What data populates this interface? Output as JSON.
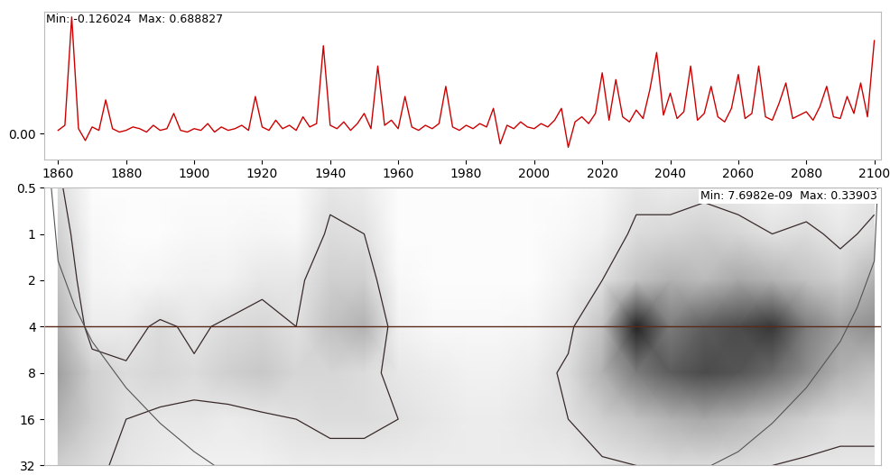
{
  "chart_data": [
    {
      "type": "line",
      "annotation": "Min: -0.126024  Max: 0.688827",
      "color": "#cc0000",
      "x": [
        1860,
        1862,
        1864,
        1866,
        1868,
        1870,
        1872,
        1874,
        1876,
        1878,
        1880,
        1882,
        1884,
        1886,
        1888,
        1890,
        1892,
        1894,
        1896,
        1898,
        1900,
        1902,
        1904,
        1906,
        1908,
        1910,
        1912,
        1914,
        1916,
        1918,
        1920,
        1922,
        1924,
        1926,
        1928,
        1930,
        1932,
        1934,
        1936,
        1938,
        1940,
        1942,
        1944,
        1946,
        1948,
        1950,
        1952,
        1954,
        1956,
        1958,
        1960,
        1962,
        1964,
        1966,
        1968,
        1970,
        1972,
        1974,
        1976,
        1978,
        1980,
        1982,
        1984,
        1986,
        1988,
        1990,
        1992,
        1994,
        1996,
        1998,
        2000,
        2002,
        2004,
        2006,
        2008,
        2010,
        2012,
        2014,
        2016,
        2018,
        2020,
        2022,
        2024,
        2026,
        2028,
        2030,
        2032,
        2034,
        2036,
        2038,
        2040,
        2042,
        2044,
        2046,
        2048,
        2050,
        2052,
        2054,
        2056,
        2058,
        2060,
        2062,
        2064,
        2066,
        2068,
        2070,
        2072,
        2074,
        2076,
        2078,
        2080,
        2082,
        2084,
        2086,
        2088,
        2090,
        2092,
        2094,
        2096,
        2098,
        2100
      ],
      "values": [
        0.02,
        0.05,
        0.69,
        0.03,
        -0.04,
        0.04,
        0.02,
        0.2,
        0.03,
        0.01,
        0.02,
        0.04,
        0.03,
        0.01,
        0.05,
        0.02,
        0.03,
        0.12,
        0.02,
        0.01,
        0.03,
        0.02,
        0.06,
        0.01,
        0.04,
        0.02,
        0.03,
        0.05,
        0.02,
        0.22,
        0.04,
        0.02,
        0.08,
        0.03,
        0.05,
        0.02,
        0.1,
        0.04,
        0.06,
        0.52,
        0.05,
        0.03,
        0.07,
        0.02,
        0.06,
        0.12,
        0.03,
        0.4,
        0.05,
        0.08,
        0.03,
        0.22,
        0.04,
        0.02,
        0.05,
        0.03,
        0.06,
        0.28,
        0.04,
        0.02,
        0.05,
        0.03,
        0.06,
        0.04,
        0.15,
        -0.06,
        0.05,
        0.03,
        0.07,
        0.04,
        0.03,
        0.06,
        0.04,
        0.08,
        0.15,
        -0.08,
        0.07,
        0.1,
        0.06,
        0.12,
        0.36,
        0.08,
        0.32,
        0.1,
        0.07,
        0.14,
        0.09,
        0.26,
        0.48,
        0.11,
        0.24,
        0.09,
        0.13,
        0.4,
        0.08,
        0.12,
        0.28,
        0.1,
        0.07,
        0.15,
        0.35,
        0.09,
        0.12,
        0.4,
        0.1,
        0.08,
        0.18,
        0.3,
        0.09,
        0.11,
        0.13,
        0.08,
        0.16,
        0.28,
        0.1,
        0.09,
        0.22,
        0.12,
        0.3,
        0.1,
        0.55
      ],
      "xlim": [
        1856,
        2102
      ],
      "ylim": [
        -0.15,
        0.72
      ],
      "xticks": [
        1860,
        1880,
        1900,
        1920,
        1940,
        1960,
        1980,
        2000,
        2020,
        2040,
        2060,
        2080,
        2100
      ],
      "yticks": [
        {
          "value": 0,
          "label": "0.00"
        }
      ]
    },
    {
      "type": "heatmap",
      "annotation": "Min: 7.6982e-09  Max: 0.33903",
      "log": "y",
      "tick_labels": "y",
      "x": [
        1860,
        1870,
        1880,
        1890,
        1900,
        1910,
        1920,
        1930,
        1940,
        1950,
        1960,
        1970,
        1980,
        1990,
        2000,
        2010,
        2020,
        2030,
        2040,
        2050,
        2060,
        2070,
        2080,
        2090,
        2100
      ],
      "y": [
        0.5,
        1,
        2,
        4,
        8,
        16,
        32
      ],
      "cells": [
        [
          0.08,
          0.01,
          0.01,
          0.01,
          0.01,
          0.01,
          0.01,
          0.01,
          0.06,
          0.05,
          0.01,
          0.01,
          0.01,
          0.01,
          0.01,
          0.01,
          0.02,
          0.06,
          0.05,
          0.06,
          0.05,
          0.03,
          0.05,
          0.03,
          0.06
        ],
        [
          0.1,
          0.02,
          0.01,
          0.01,
          0.02,
          0.02,
          0.03,
          0.02,
          0.08,
          0.07,
          0.01,
          0.01,
          0.01,
          0.01,
          0.01,
          0.02,
          0.04,
          0.08,
          0.09,
          0.1,
          0.09,
          0.07,
          0.08,
          0.06,
          0.08
        ],
        [
          0.12,
          0.03,
          0.02,
          0.03,
          0.04,
          0.04,
          0.06,
          0.06,
          0.1,
          0.1,
          0.02,
          0.01,
          0.01,
          0.01,
          0.01,
          0.04,
          0.07,
          0.12,
          0.14,
          0.13,
          0.15,
          0.14,
          0.12,
          0.1,
          0.14
        ],
        [
          0.14,
          0.05,
          0.05,
          0.08,
          0.06,
          0.08,
          0.09,
          0.07,
          0.12,
          0.14,
          0.04,
          0.02,
          0.02,
          0.02,
          0.03,
          0.06,
          0.12,
          0.3,
          0.2,
          0.24,
          0.26,
          0.28,
          0.2,
          0.16,
          0.18
        ],
        [
          0.16,
          0.1,
          0.08,
          0.09,
          0.08,
          0.1,
          0.11,
          0.09,
          0.09,
          0.08,
          0.06,
          0.05,
          0.04,
          0.04,
          0.05,
          0.08,
          0.14,
          0.2,
          0.24,
          0.26,
          0.25,
          0.22,
          0.18,
          0.14,
          0.12
        ],
        [
          0.14,
          0.1,
          0.07,
          0.06,
          0.06,
          0.05,
          0.06,
          0.07,
          0.08,
          0.08,
          0.07,
          0.06,
          0.05,
          0.05,
          0.06,
          0.07,
          0.1,
          0.12,
          0.14,
          0.15,
          0.14,
          0.12,
          0.1,
          0.08,
          0.08
        ],
        [
          0.1,
          0.08,
          0.06,
          0.05,
          0.04,
          0.04,
          0.04,
          0.05,
          0.05,
          0.05,
          0.05,
          0.05,
          0.05,
          0.05,
          0.05,
          0.05,
          0.06,
          0.07,
          0.08,
          0.08,
          0.08,
          0.07,
          0.06,
          0.06,
          0.06
        ]
      ],
      "value_range": [
        7.6982e-09,
        0.33903
      ],
      "significance_level": 0.07,
      "coi": {
        "x": [
          1858,
          1860,
          1865,
          1870,
          1880,
          1890,
          1900,
          1906,
          2052,
          2060,
          2070,
          2080,
          2090,
          2095,
          2100,
          2101
        ],
        "period": [
          0.5,
          1.5,
          3,
          5,
          10,
          17,
          26,
          32,
          32,
          26,
          17,
          10,
          5,
          3,
          1.5,
          0.5
        ]
      },
      "reference_period": 4,
      "xlim": [
        1856,
        2102
      ],
      "ylim": [
        32,
        0.5
      ],
      "xticks": [],
      "yticks": [
        0.5,
        1,
        2,
        4,
        8,
        16,
        32
      ]
    }
  ]
}
